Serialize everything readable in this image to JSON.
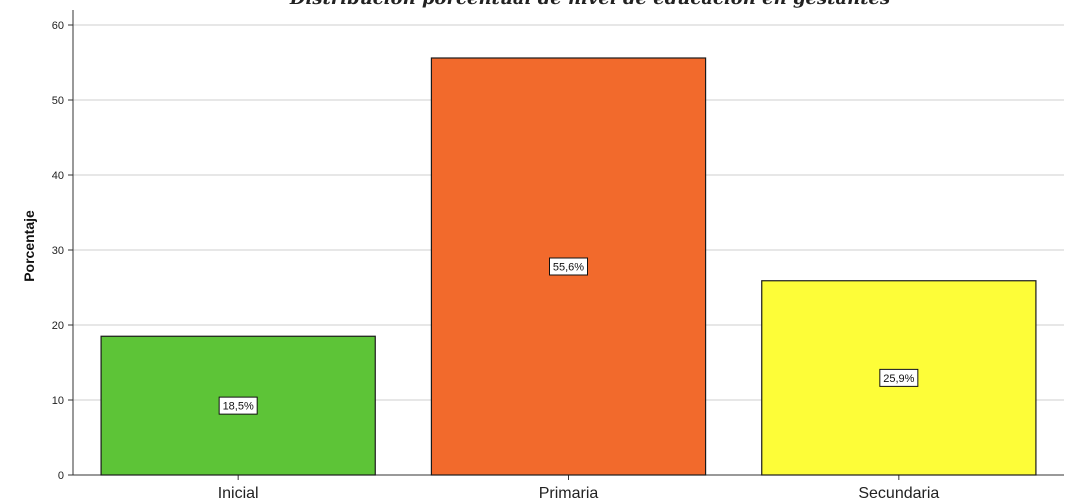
{
  "chart_data": {
    "type": "bar",
    "title": "Distribución porcentual de nivel de educación en gestantes",
    "ylabel": "Porcentaje",
    "xlabel": "",
    "ylim": [
      0,
      62
    ],
    "yticks": [
      "0",
      "10",
      "20",
      "30",
      "40",
      "50",
      "60"
    ],
    "ytick_values": [
      0,
      10,
      20,
      30,
      40,
      50,
      60
    ],
    "grid": true,
    "legend": "none",
    "categories": [
      "Inicial",
      "Primaria",
      "Secundaria"
    ],
    "values": [
      18.5,
      55.6,
      25.9
    ],
    "data_labels": [
      "18,5%",
      "55,6%",
      "25,9%"
    ],
    "colors": [
      "#5dc437",
      "#f26a2c",
      "#fdfd38"
    ]
  }
}
